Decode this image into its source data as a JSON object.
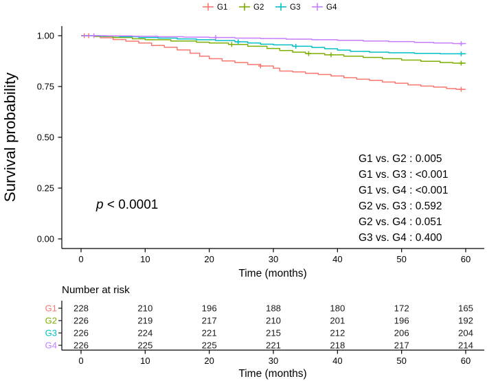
{
  "chart_data": {
    "type": "line",
    "subtype": "kaplan-meier-step-curves",
    "ylabel": "Survival probability",
    "xlabel": "Time (months)",
    "xticks": [
      0,
      10,
      20,
      30,
      40,
      50,
      60
    ],
    "yticks": [
      {
        "label": "1.00",
        "value": 1.0
      },
      {
        "label": "0.75",
        "value": 0.75
      },
      {
        "label": "0.50",
        "value": 0.5
      },
      {
        "label": "0.25",
        "value": 0.25
      },
      {
        "label": "0.00",
        "value": 0.0
      }
    ],
    "xlim": [
      0,
      60
    ],
    "ylim": [
      0,
      1
    ],
    "legend_position": "top",
    "grid": false,
    "series": [
      {
        "name": "G1",
        "color": "#F8766D",
        "steps": [
          [
            0,
            1.0
          ],
          [
            3,
            0.99
          ],
          [
            5,
            0.981
          ],
          [
            7,
            0.973
          ],
          [
            9,
            0.964
          ],
          [
            11,
            0.952
          ],
          [
            13,
            0.943
          ],
          [
            15,
            0.93
          ],
          [
            17,
            0.914
          ],
          [
            18.5,
            0.899
          ],
          [
            20,
            0.887
          ],
          [
            22,
            0.876
          ],
          [
            24,
            0.868
          ],
          [
            26,
            0.858
          ],
          [
            28,
            0.851
          ],
          [
            30,
            0.84
          ],
          [
            31,
            0.826
          ],
          [
            33,
            0.822
          ],
          [
            35,
            0.815
          ],
          [
            37,
            0.809
          ],
          [
            39,
            0.802
          ],
          [
            41,
            0.793
          ],
          [
            43,
            0.786
          ],
          [
            45,
            0.78
          ],
          [
            47,
            0.772
          ],
          [
            49,
            0.766
          ],
          [
            51,
            0.758
          ],
          [
            53,
            0.752
          ],
          [
            55,
            0.747
          ],
          [
            57,
            0.74
          ],
          [
            58.5,
            0.736
          ],
          [
            60,
            0.736
          ]
        ],
        "censor_times": [
          0.5,
          1.2,
          28,
          59.3
        ]
      },
      {
        "name": "G2",
        "color": "#7CAE00",
        "steps": [
          [
            0,
            1.0
          ],
          [
            2,
            0.996
          ],
          [
            5,
            0.991
          ],
          [
            8,
            0.985
          ],
          [
            10,
            0.98
          ],
          [
            14,
            0.974
          ],
          [
            18,
            0.968
          ],
          [
            20,
            0.964
          ],
          [
            23,
            0.957
          ],
          [
            26,
            0.948
          ],
          [
            29,
            0.937
          ],
          [
            31,
            0.927
          ],
          [
            33,
            0.919
          ],
          [
            35,
            0.912
          ],
          [
            38,
            0.906
          ],
          [
            41,
            0.899
          ],
          [
            44,
            0.893
          ],
          [
            47,
            0.887
          ],
          [
            50,
            0.88
          ],
          [
            53,
            0.874
          ],
          [
            56,
            0.868
          ],
          [
            58,
            0.865
          ],
          [
            60,
            0.865
          ]
        ],
        "censor_times": [
          23.5,
          35.5,
          39,
          59.3
        ]
      },
      {
        "name": "G3",
        "color": "#00BFC4",
        "steps": [
          [
            0,
            1.0
          ],
          [
            3,
            0.998
          ],
          [
            6,
            0.995
          ],
          [
            9,
            0.991
          ],
          [
            12,
            0.988
          ],
          [
            15,
            0.984
          ],
          [
            18,
            0.98
          ],
          [
            21,
            0.976
          ],
          [
            24,
            0.97
          ],
          [
            26,
            0.964
          ],
          [
            28,
            0.958
          ],
          [
            30,
            0.955
          ],
          [
            33,
            0.948
          ],
          [
            36,
            0.942
          ],
          [
            38,
            0.936
          ],
          [
            40,
            0.929
          ],
          [
            42,
            0.923
          ],
          [
            45,
            0.919
          ],
          [
            48,
            0.916
          ],
          [
            52,
            0.913
          ],
          [
            56,
            0.911
          ],
          [
            60,
            0.91
          ]
        ],
        "censor_times": [
          24.5,
          33.5,
          59.3
        ]
      },
      {
        "name": "G4",
        "color": "#C77CFF",
        "steps": [
          [
            0,
            1.0
          ],
          [
            4,
            0.999
          ],
          [
            8,
            0.997
          ],
          [
            12,
            0.995
          ],
          [
            16,
            0.993
          ],
          [
            20,
            0.991
          ],
          [
            24,
            0.988
          ],
          [
            28,
            0.986
          ],
          [
            32,
            0.983
          ],
          [
            36,
            0.98
          ],
          [
            40,
            0.977
          ],
          [
            44,
            0.974
          ],
          [
            48,
            0.971
          ],
          [
            52,
            0.967
          ],
          [
            55,
            0.964
          ],
          [
            58,
            0.961
          ],
          [
            60,
            0.96
          ]
        ],
        "censor_times": [
          2,
          21,
          59.3
        ]
      }
    ],
    "annotations": {
      "p_value": "p < 0.0001",
      "pairwise": [
        "G1 vs. G2 : 0.005",
        "G1 vs. G3 : <0.001",
        "G1 vs. G4 : <0.001",
        "G2 vs. G3 : 0.592",
        "G2 vs. G4 : 0.051",
        "G3 vs. G4 : 0.400"
      ]
    },
    "risk_table": {
      "title": "Number at risk",
      "xlabel": "Time (months)",
      "times": [
        0,
        10,
        20,
        30,
        40,
        50,
        60
      ],
      "rows": [
        {
          "label": "G1",
          "color": "#F8766D",
          "values": [
            228,
            210,
            196,
            188,
            180,
            172,
            165
          ]
        },
        {
          "label": "G2",
          "color": "#7CAE00",
          "values": [
            226,
            219,
            217,
            210,
            201,
            196,
            192
          ]
        },
        {
          "label": "G3",
          "color": "#00BFC4",
          "values": [
            226,
            224,
            221,
            215,
            212,
            206,
            204
          ]
        },
        {
          "label": "G4",
          "color": "#C77CFF",
          "values": [
            226,
            225,
            225,
            221,
            218,
            217,
            214
          ]
        }
      ]
    }
  }
}
